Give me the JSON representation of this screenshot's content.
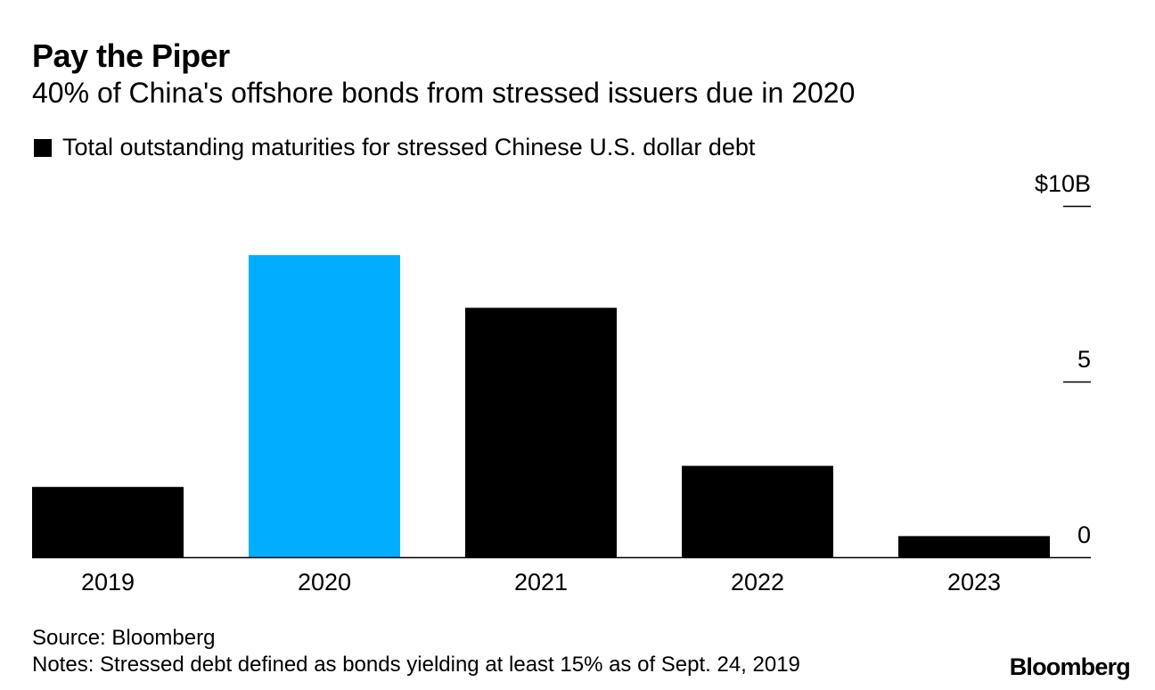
{
  "header": {
    "title": "Pay the Piper",
    "subtitle": "40% of China's offshore bonds from stressed issuers due in 2020"
  },
  "legend": {
    "label": "Total outstanding maturities for stressed Chinese U.S. dollar debt"
  },
  "footer": {
    "source": "Source: Bloomberg",
    "notes": "Notes: Stressed debt defined as bonds yielding at least 15% as of Sept. 24, 2019",
    "brand": "Bloomberg"
  },
  "colors": {
    "bar_default": "#000000",
    "bar_highlight": "#00adfe",
    "axis": "#000000"
  },
  "chart_data": {
    "type": "bar",
    "title": "Pay the Piper",
    "subtitle": "40% of China's offshore bonds from stressed issuers due in 2020",
    "xlabel": "",
    "ylabel": "",
    "categories": [
      "2019",
      "2020",
      "2021",
      "2022",
      "2023"
    ],
    "series": [
      {
        "name": "Total outstanding maturities for stressed Chinese U.S. dollar debt",
        "values": [
          2.0,
          8.6,
          7.1,
          2.6,
          0.6
        ],
        "highlight_index": 1
      }
    ],
    "ylim": [
      0,
      10
    ],
    "yticks": [
      {
        "value": 10,
        "label": "$10B"
      },
      {
        "value": 5,
        "label": "5"
      },
      {
        "value": 0,
        "label": "0"
      }
    ],
    "y_axis_position": "right",
    "grid": false
  }
}
